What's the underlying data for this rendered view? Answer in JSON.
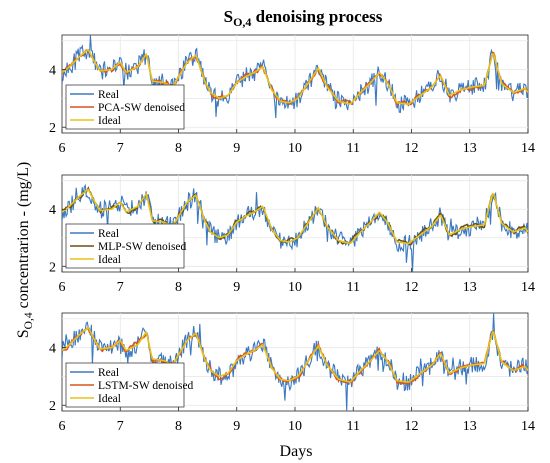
{
  "chart_data": {
    "type": "line",
    "title_main": "S",
    "title_sub": "O,4",
    "title_rest": " denoising process",
    "xlabel": "Days",
    "ylabel_main": "S",
    "ylabel_sub": "O,4",
    "ylabel_rest": " concentrarion - (mg/L)",
    "xlim": [
      6,
      14
    ],
    "ylim": [
      1.8,
      5.2
    ],
    "xticks": [
      "6",
      "7",
      "8",
      "9",
      "10",
      "11",
      "12",
      "13",
      "14"
    ],
    "yticks": [
      "2",
      "4"
    ],
    "xtick_values": [
      6,
      7,
      8,
      9,
      10,
      11,
      12,
      13,
      14
    ],
    "ytick_values": [
      2,
      4
    ],
    "grid": true,
    "legend_position": "bottom-left",
    "colors": {
      "real": "#3b78c2",
      "ideal": "#e6c21a",
      "pca": "#d9531e",
      "mlp": "#6b4e16",
      "lstm": "#d9531e"
    },
    "ideal_profile": {
      "x": [
        6.0,
        6.1,
        6.3,
        6.45,
        6.55,
        6.65,
        6.85,
        7.0,
        7.1,
        7.3,
        7.45,
        7.55,
        7.75,
        7.9,
        8.0,
        8.15,
        8.3,
        8.45,
        8.55,
        8.7,
        8.85,
        9.0,
        9.15,
        9.3,
        9.45,
        9.6,
        9.75,
        9.9,
        10.05,
        10.25,
        10.4,
        10.55,
        10.75,
        10.95,
        11.1,
        11.3,
        11.45,
        11.6,
        11.75,
        11.95,
        12.15,
        12.35,
        12.5,
        12.65,
        12.85,
        13.05,
        13.25,
        13.4,
        13.55,
        13.75,
        13.95,
        14.0
      ],
      "y": [
        3.9,
        4.05,
        4.45,
        4.7,
        4.3,
        3.95,
        4.0,
        4.25,
        3.9,
        4.1,
        4.55,
        3.6,
        3.55,
        3.4,
        3.75,
        4.25,
        4.5,
        3.6,
        3.2,
        3.0,
        3.1,
        3.55,
        3.75,
        3.9,
        4.1,
        3.3,
        2.9,
        2.85,
        3.0,
        3.6,
        4.05,
        3.4,
        2.9,
        2.8,
        3.15,
        3.55,
        3.9,
        3.5,
        2.85,
        2.8,
        3.1,
        3.4,
        3.8,
        3.1,
        3.3,
        3.4,
        3.45,
        4.6,
        3.5,
        3.2,
        3.35,
        3.2
      ]
    },
    "series": [
      {
        "key": "real",
        "name": "Real",
        "noise": 0.32
      },
      {
        "key": "denoised",
        "name": "Denoised",
        "noise": 0.07
      },
      {
        "key": "ideal",
        "name": "Ideal",
        "noise": 0
      }
    ],
    "panels": [
      {
        "legend": [
          "Real",
          "PCA-SW denoised",
          "Ideal"
        ],
        "denoised_color": "pca",
        "seed": 11
      },
      {
        "legend": [
          "Real",
          "MLP-SW denoised",
          "Ideal"
        ],
        "denoised_color": "mlp",
        "seed": 23
      },
      {
        "legend": [
          "Real",
          "LSTM-SW denoised",
          "Ideal"
        ],
        "denoised_color": "lstm",
        "seed": 37
      }
    ]
  }
}
